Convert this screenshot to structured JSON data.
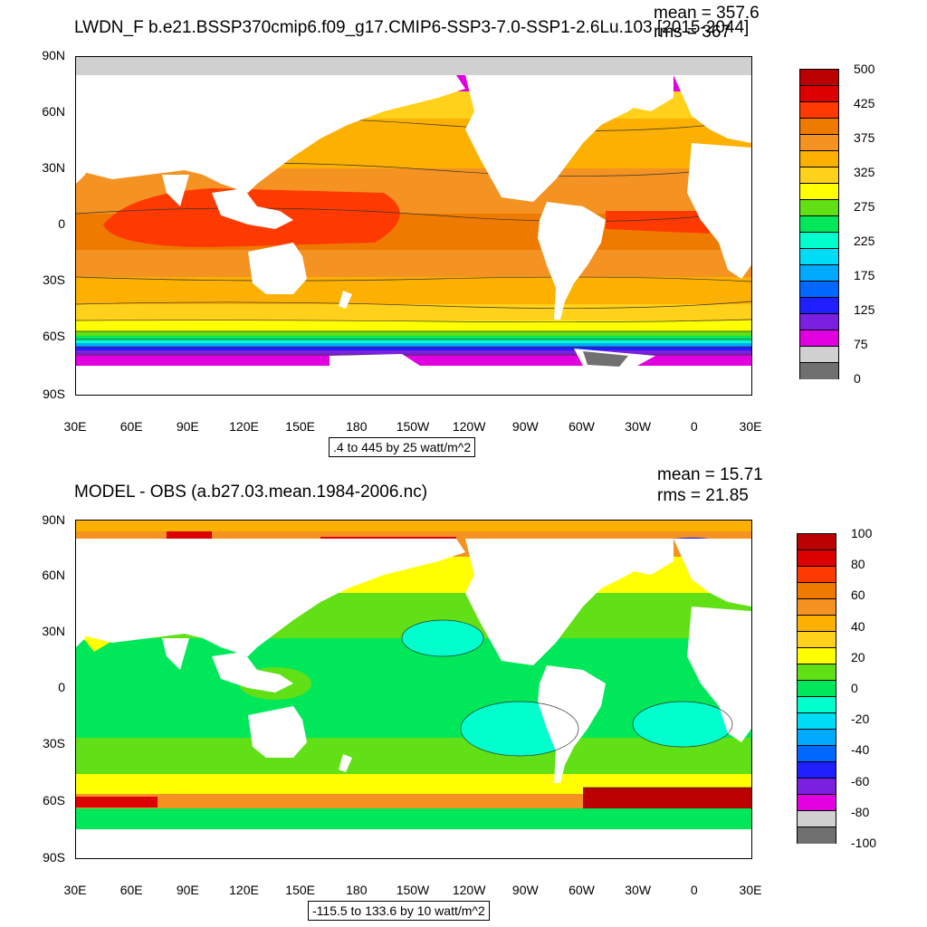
{
  "panel_top": {
    "title": "LWDN_F b.e21.BSSP370cmip6.f09_g17.CMIP6-SSP3-7.0-SSP1-2.6Lu.103 [2015-2044]",
    "mean": "mean = 357.6",
    "rms": "rms = 367",
    "range": ".4 to 445 by 25 watt/m^2",
    "colorbar": {
      "colors": [
        "#ba0000",
        "#dd0000",
        "#ff3a00",
        "#ee7a00",
        "#f49322",
        "#fcb000",
        "#ffd11a",
        "#ffff00",
        "#60e015",
        "#00e85a",
        "#00ffcc",
        "#00dcf5",
        "#00aaff",
        "#0068ff",
        "#1f1fff",
        "#7b1fe0",
        "#e000e0",
        "#d0d0d0",
        "#707070"
      ],
      "labels": [
        "500",
        "425",
        "375",
        "325",
        "275",
        "225",
        "175",
        "125",
        "75",
        "0"
      ]
    }
  },
  "panel_bottom": {
    "title": "MODEL - OBS (a.b27.03.mean.1984-2006.nc)",
    "mean": "mean = 15.71",
    "rms": "rms = 21.85",
    "range": "-115.5 to 133.6 by 10 watt/m^2",
    "colorbar": {
      "colors": [
        "#ba0000",
        "#dd0000",
        "#ff3a00",
        "#ee7a00",
        "#f49322",
        "#fcb000",
        "#ffd11a",
        "#ffff00",
        "#60e015",
        "#00e85a",
        "#00ffcc",
        "#00dcf5",
        "#00aaff",
        "#0068ff",
        "#1f1fff",
        "#7b1fe0",
        "#e000e0",
        "#d0d0d0",
        "#707070"
      ],
      "labels": [
        "100",
        "80",
        "60",
        "40",
        "20",
        "0",
        "-20",
        "-40",
        "-60",
        "-80",
        "-100"
      ]
    }
  },
  "axes": {
    "lat_labels": [
      "90N",
      "60N",
      "30N",
      "0",
      "30S",
      "60S",
      "90S"
    ],
    "lon_labels": [
      "30E",
      "60E",
      "90E",
      "120E",
      "150E",
      "180",
      "150W",
      "120W",
      "90W",
      "60W",
      "30W",
      "0",
      "30E"
    ]
  }
}
